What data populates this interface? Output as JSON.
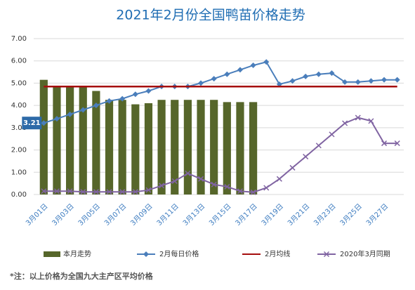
{
  "chart_data": {
    "type": "combo",
    "title": "2021年2月份全国鸭苗价格走势",
    "categories": [
      "3月01日",
      null,
      "3月03日",
      null,
      "3月05日",
      null,
      "3月07日",
      null,
      "3月09日",
      null,
      "3月11日",
      null,
      "3月13日",
      null,
      "3月15日",
      null,
      "3月17日",
      null,
      "3月19日",
      null,
      "3月21日",
      null,
      "3月23日",
      null,
      "3月25日",
      null,
      "3月27日",
      null
    ],
    "series": [
      {
        "name": "本月走势",
        "kind": "bar",
        "color": "#56662a",
        "values": [
          5.15,
          4.85,
          4.85,
          4.85,
          4.65,
          4.25,
          4.25,
          4.05,
          4.1,
          4.25,
          4.25,
          4.25,
          4.25,
          4.25,
          4.15,
          4.15,
          4.15,
          null,
          null,
          null,
          null,
          null,
          null,
          null,
          null,
          null,
          null,
          null
        ]
      },
      {
        "name": "2月每日价格",
        "kind": "line",
        "marker": "diamond",
        "color": "#4a7ebb",
        "values": [
          3.21,
          3.4,
          3.6,
          3.8,
          4.0,
          4.2,
          4.3,
          4.5,
          4.65,
          4.85,
          4.85,
          4.85,
          5.0,
          5.2,
          5.4,
          5.6,
          5.8,
          5.95,
          4.95,
          5.1,
          5.3,
          5.4,
          5.45,
          5.05,
          5.05,
          5.1,
          5.15,
          5.15
        ],
        "value_labels": [
          "3.21",
          null,
          null,
          null,
          null,
          null,
          null,
          null,
          null,
          null,
          null,
          null,
          null,
          null,
          null,
          null,
          null,
          null,
          null,
          null,
          null,
          null,
          null,
          null,
          null,
          null,
          null,
          null
        ]
      },
      {
        "name": "2月均线",
        "kind": "line",
        "marker": "none",
        "color": "#a50e0e",
        "values": [
          4.85,
          4.85,
          4.85,
          4.85,
          4.85,
          4.85,
          4.85,
          4.85,
          4.85,
          4.85,
          4.85,
          4.85,
          4.85,
          4.85,
          4.85,
          4.85,
          4.85,
          4.85,
          4.85,
          4.85,
          4.85,
          4.85,
          4.85,
          4.85,
          4.85,
          4.85,
          4.85,
          4.85
        ]
      },
      {
        "name": "2020年3月同期",
        "kind": "line",
        "marker": "x",
        "color": "#8064a2",
        "values": [
          0.15,
          0.15,
          0.15,
          0.12,
          0.12,
          0.12,
          0.12,
          0.12,
          0.2,
          0.4,
          0.6,
          0.95,
          0.7,
          0.45,
          0.35,
          0.15,
          0.1,
          0.3,
          0.7,
          1.2,
          1.7,
          2.2,
          2.7,
          3.2,
          3.45,
          3.3,
          2.3,
          2.3
        ]
      }
    ],
    "ylim": [
      0,
      7
    ],
    "yticks": [
      {
        "value": 0,
        "label": "0.00"
      },
      {
        "value": 1,
        "label": "1.00"
      },
      {
        "value": 2,
        "label": "2.00"
      },
      {
        "value": 3,
        "label": "3.00"
      },
      {
        "value": 4,
        "label": "4.00"
      },
      {
        "value": 5,
        "label": "5.00"
      },
      {
        "value": 6,
        "label": "6.00"
      },
      {
        "value": 7,
        "label": "7.00"
      }
    ],
    "grid": true,
    "legend": "bottom",
    "note": "*注：以上价格为全国九大主产区平均价格"
  }
}
